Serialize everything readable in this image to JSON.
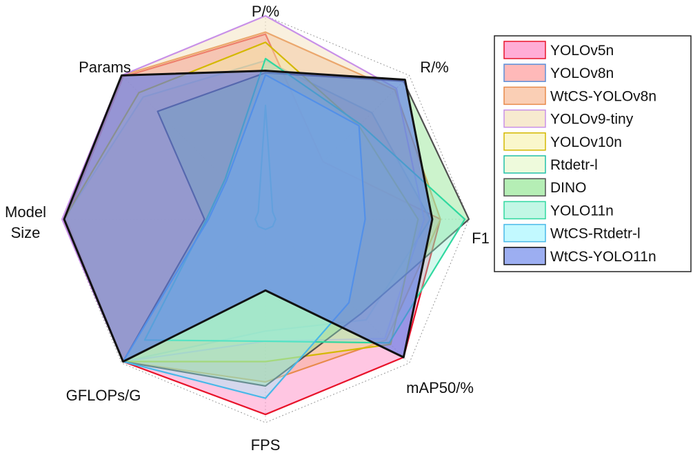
{
  "chart_data": {
    "type": "radar",
    "axes": [
      "P/%",
      "R/%",
      "F1",
      "mAP50/%",
      "FPS",
      "GFLOPs/G",
      "Model Size",
      "Params"
    ],
    "model_size_label": [
      "Model",
      "Size"
    ],
    "range": [
      0,
      1
    ],
    "grid": false,
    "legend_position": "right",
    "series": [
      {
        "name": "YOLOv5n",
        "stroke": "#e8132a",
        "fill": "#ff69b4",
        "values": [
          0.91,
          0.4,
          0.86,
          0.96,
          0.96,
          0.99,
          0.98,
          0.99
        ]
      },
      {
        "name": "YOLOv8n",
        "stroke": "#5a8ed8",
        "fill": "#ff8080",
        "values": [
          0.78,
          0.74,
          0.81,
          0.7,
          0.55,
          0.99,
          0.99,
          0.85
        ]
      },
      {
        "name": "WtCS-YOLOv8n",
        "stroke": "#e88a4a",
        "fill": "#f5a878",
        "values": [
          0.92,
          0.9,
          0.86,
          0.84,
          0.8,
          0.99,
          0.99,
          1.0
        ]
      },
      {
        "name": "YOLOv9-tiny",
        "stroke": "#c890e8",
        "fill": "#f0d8a8",
        "values": [
          1.0,
          0.91,
          0.78,
          0.83,
          0.6,
          0.99,
          1.0,
          1.0
        ]
      },
      {
        "name": "YOLOv10n",
        "stroke": "#d4b800",
        "fill": "#f5f0a0",
        "values": [
          0.87,
          0.65,
          0.75,
          0.87,
          0.7,
          0.99,
          0.99,
          0.88
        ]
      },
      {
        "name": "Rtdetr-l",
        "stroke": "#20c0a8",
        "fill": "#e0f5c0",
        "values": [
          0.56,
          0.05,
          0.05,
          0.05,
          0.05,
          0.05,
          0.05,
          0.05
        ]
      },
      {
        "name": "DINO",
        "stroke": "#505050",
        "fill": "#78e078",
        "values": [
          0.72,
          0.96,
          1.0,
          0.66,
          0.82,
          0.99,
          0.3,
          0.75
        ]
      },
      {
        "name": "YOLO11n",
        "stroke": "#30d8a0",
        "fill": "#90f0d0",
        "values": [
          0.79,
          0.66,
          0.98,
          0.86,
          0.6,
          0.84,
          0.29,
          0.28
        ]
      },
      {
        "name": "WtCS-Rtdetr-l",
        "stroke": "#48b8e8",
        "fill": "#90f4ff",
        "values": [
          0.71,
          0.65,
          0.49,
          0.58,
          0.88,
          0.99,
          0.28,
          0.27
        ]
      },
      {
        "name": "WtCS-YOLO11n",
        "stroke": "#111111",
        "fill": "#5a78e8",
        "values": [
          0.73,
          0.97,
          0.82,
          0.96,
          0.35,
          0.99,
          0.99,
          1.0
        ]
      }
    ]
  }
}
